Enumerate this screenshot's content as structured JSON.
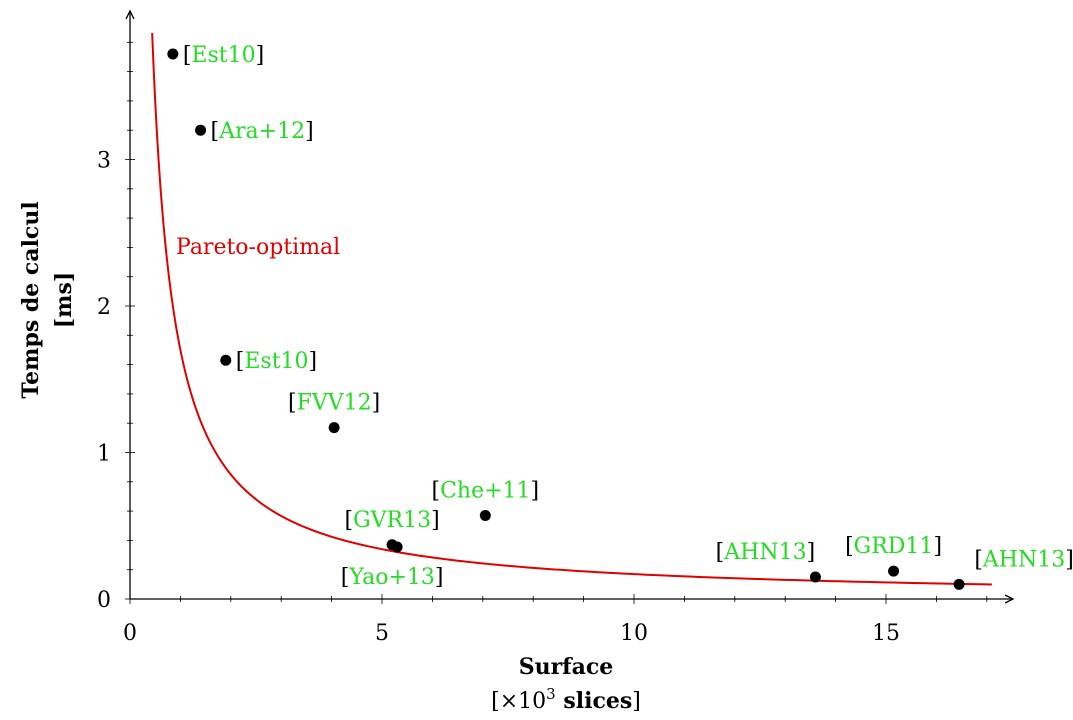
{
  "chart_data": {
    "type": "scatter",
    "title": "",
    "xlabel": "Surface",
    "xlabel_unit": "[×10³ slices]",
    "ylabel": "Temps de calcul",
    "ylabel_unit": "[ms]",
    "xlim": [
      0,
      17.5
    ],
    "ylim": [
      0,
      3.95
    ],
    "x_ticks": [
      0,
      5,
      10,
      15
    ],
    "y_ticks": [
      0,
      1,
      2,
      3
    ],
    "x_minor_step": 1,
    "y_minor_step": 0.2,
    "grid": false,
    "points": [
      {
        "x": 0.85,
        "y": 3.72,
        "label": "Est10",
        "label_pos": "right"
      },
      {
        "x": 1.4,
        "y": 3.2,
        "label": "Ara+12",
        "label_pos": "right"
      },
      {
        "x": 1.9,
        "y": 1.63,
        "label": "Est10",
        "label_pos": "right"
      },
      {
        "x": 4.05,
        "y": 1.17,
        "label": "FVV12",
        "label_pos": "above"
      },
      {
        "x": 7.05,
        "y": 0.57,
        "label": "Che+11",
        "label_pos": "above"
      },
      {
        "x": 5.2,
        "y": 0.37,
        "label": "GVR13",
        "label_pos": "above"
      },
      {
        "x": 5.3,
        "y": 0.355,
        "label": "Yao+13",
        "label_pos": "below"
      },
      {
        "x": 13.6,
        "y": 0.15,
        "label": "AHN13",
        "label_pos": "above-left"
      },
      {
        "x": 15.15,
        "y": 0.19,
        "label": "GRD11",
        "label_pos": "above"
      },
      {
        "x": 16.45,
        "y": 0.1,
        "label": "AHN13",
        "label_pos": "above-right"
      }
    ],
    "curve": {
      "name": "Pareto-optimal",
      "color": "#e00000",
      "formula": "y = 1.7 / x",
      "x_range": [
        0.44,
        17.1
      ]
    },
    "colors": {
      "point": "#000000",
      "citation": "#22dd22",
      "bracket": "#000000",
      "axis": "#000000"
    }
  }
}
